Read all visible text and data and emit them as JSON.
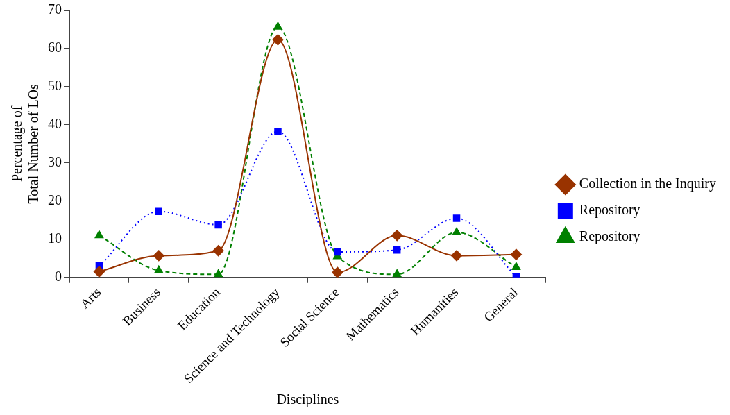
{
  "chart_data": {
    "type": "line",
    "xlabel": "Disciplines",
    "ylabel": "Percentage of\nTotal Number of LOs",
    "categories": [
      "Arts",
      "Business",
      "Education",
      "Science and Technology",
      "Social Science",
      "Mathematics",
      "Humanities",
      "General"
    ],
    "series": [
      {
        "name": "Collection in the Inquiry",
        "color": "#993300",
        "marker": "diamond",
        "line_style": "solid",
        "values": [
          1.5,
          5.7,
          7,
          62.3,
          1.3,
          11,
          5.7,
          6
        ]
      },
      {
        "name": "Repository",
        "color": "#0000ff",
        "marker": "square",
        "line_style": "dotted",
        "values": [
          3,
          17.3,
          13.8,
          38.3,
          6.7,
          7.2,
          15.5,
          0.2
        ]
      },
      {
        "name": "Repository",
        "color": "#008000",
        "marker": "triangle",
        "line_style": "dashed",
        "values": [
          11,
          1.8,
          0.8,
          65.7,
          5.5,
          0.8,
          11.8,
          2.7
        ]
      }
    ],
    "ylim": [
      0,
      70
    ],
    "yticks": [
      0,
      10,
      20,
      30,
      40,
      50,
      60,
      70
    ],
    "grid": false,
    "legend": "right"
  }
}
